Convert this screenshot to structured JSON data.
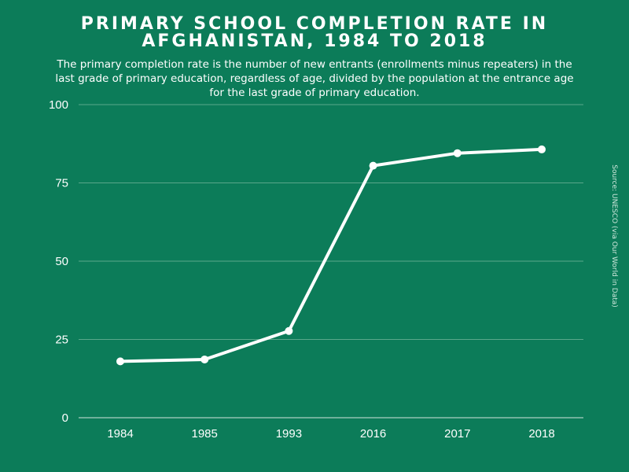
{
  "chart_data": {
    "type": "line",
    "title": "PRIMARY SCHOOL COMPLETION RATE IN AFGHANISTAN, 1984 TO 2018",
    "subtitle": "The primary completion rate is the number of new entrants (enrollments minus repeaters) in the last grade of primary education, regardless of age, divided by the population at the entrance age for the last grade of primary education.",
    "source": "Source: UNESCO (via Our World in Data)",
    "categories": [
      "1984",
      "1985",
      "1993",
      "2016",
      "2017",
      "2018"
    ],
    "values": [
      18,
      18.6,
      27.7,
      80.5,
      84.5,
      85.7
    ],
    "ylim": [
      0,
      100
    ],
    "yticks": [
      0,
      25,
      50,
      75,
      100
    ],
    "ytick_labels": [
      "0",
      "25",
      "50",
      "75",
      "100"
    ],
    "xlabel": "",
    "ylabel": "",
    "grid": true
  },
  "colors": {
    "background": "#0c7c59",
    "line": "#ffffff",
    "grid": "#5aa78a"
  }
}
